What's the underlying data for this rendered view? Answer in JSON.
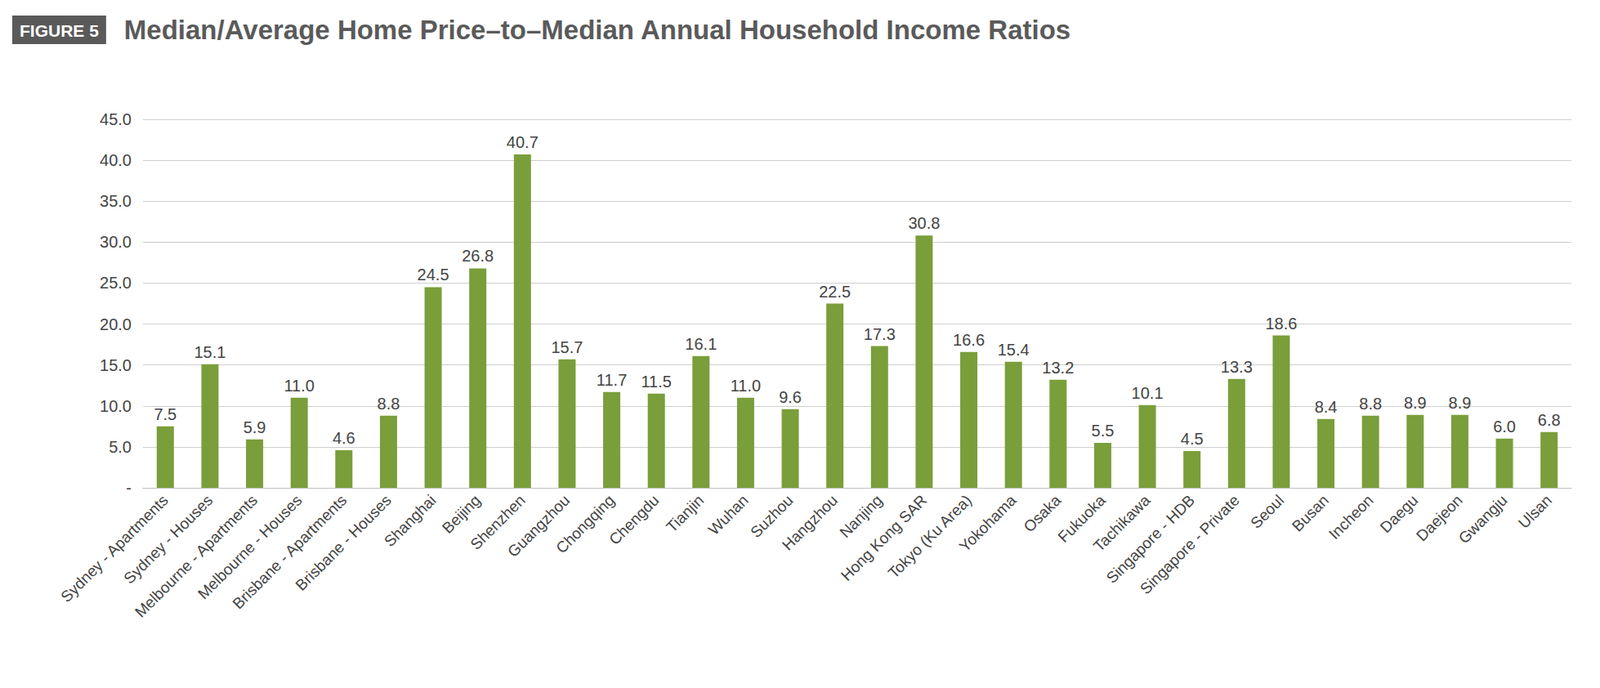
{
  "chart_data": {
    "type": "bar",
    "figure_label": "FIGURE 5",
    "title": "Median/Average Home Price–to–Median Annual Household Income Ratios",
    "categories": [
      "Sydney - Apartments",
      "Sydney - Houses",
      "Melbourne - Apartments",
      "Melbourne - Houses",
      "Brisbane - Apartments",
      "Brisbane - Houses",
      "Shanghai",
      "Beijing",
      "Shenzhen",
      "Guangzhou",
      "Chongqing",
      "Chengdu",
      "Tianjin",
      "Wuhan",
      "Suzhou",
      "Hangzhou",
      "Nanjing",
      "Hong Kong SAR",
      "Tokyo (Ku Area)",
      "Yokohama",
      "Osaka",
      "Fukuoka",
      "Tachikawa",
      "Singapore - HDB",
      "Singapore - Private",
      "Seoul",
      "Busan",
      "Incheon",
      "Daegu",
      "Daejeon",
      "Gwangju",
      "Ulsan"
    ],
    "values": [
      7.5,
      15.1,
      5.9,
      11.0,
      4.6,
      8.8,
      24.5,
      26.8,
      40.7,
      15.7,
      11.7,
      11.5,
      16.1,
      11.0,
      9.6,
      22.5,
      17.3,
      30.8,
      16.6,
      15.4,
      13.2,
      5.5,
      10.1,
      4.5,
      13.3,
      18.6,
      8.4,
      8.8,
      8.9,
      8.9,
      6.0,
      6.8
    ],
    "value_labels": [
      "7.5",
      "15.1",
      "5.9",
      "11.0",
      "4.6",
      "8.8",
      "24.5",
      "26.8",
      "40.7",
      "15.7",
      "11.7",
      "11.5",
      "16.1",
      "11.0",
      "9.6",
      "22.5",
      "17.3",
      "30.8",
      "16.6",
      "15.4",
      "13.2",
      "5.5",
      "10.1",
      "4.5",
      "13.3",
      "18.6",
      "8.4",
      "8.8",
      "8.9",
      "8.9",
      "6.0",
      "6.8"
    ],
    "color": "#7a9e3a",
    "ylim": [
      0,
      45
    ],
    "yticks": [
      {
        "value": 0,
        "label": "-"
      },
      {
        "value": 5,
        "label": "5.0"
      },
      {
        "value": 10,
        "label": "10.0"
      },
      {
        "value": 15,
        "label": "15.0"
      },
      {
        "value": 20,
        "label": "20.0"
      },
      {
        "value": 25,
        "label": "25.0"
      },
      {
        "value": 30,
        "label": "30.0"
      },
      {
        "value": 35,
        "label": "35.0"
      },
      {
        "value": 40,
        "label": "40.0"
      },
      {
        "value": 45,
        "label": "45.0"
      }
    ],
    "grid": true,
    "data_labels": true
  }
}
